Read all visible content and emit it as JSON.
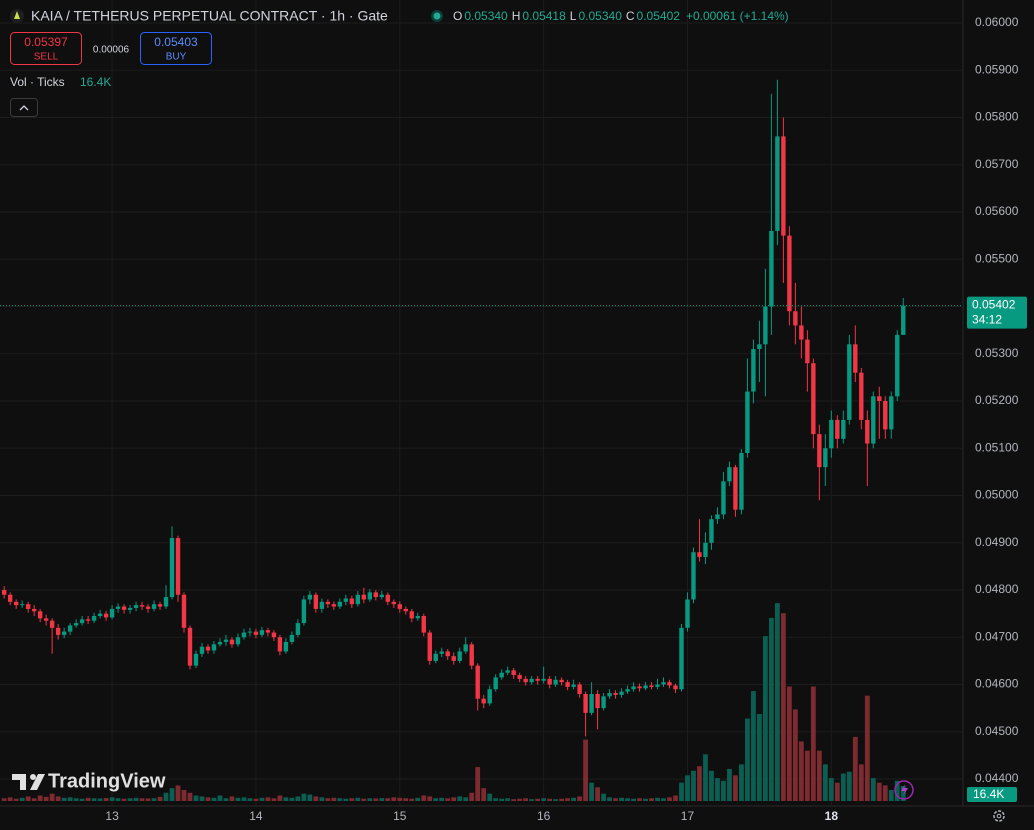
{
  "chart_data": {
    "type": "candlestick",
    "title": "KAIA / TETHERUS PERPETUAL CONTRACT · 1h · Gate",
    "legend": [
      {
        "key": "O",
        "value": "0.05340"
      },
      {
        "key": "H",
        "value": "0.05418"
      },
      {
        "key": "L",
        "value": "0.05340"
      },
      {
        "key": "C",
        "value": "0.05402"
      }
    ],
    "change": "+0.00061 (+1.14%)",
    "sell": {
      "price": "0.05397",
      "label": "SELL"
    },
    "spread": "0.00006",
    "buy": {
      "price": "0.05403",
      "label": "BUY"
    },
    "volume_title": "Vol · Ticks",
    "volume_label": "16.4K",
    "countdown": "34:12",
    "watermark": "TradingView",
    "up_color": "#089981",
    "down_color": "#f23645",
    "volume_up_color": "#0b5e52",
    "volume_down_color": "#7d2a30",
    "grid": true,
    "xlim": [
      -0.7,
      159.8
    ],
    "xticks": [
      {
        "value": 18,
        "label": "13"
      },
      {
        "value": 42,
        "label": "14"
      },
      {
        "value": 66,
        "label": "15"
      },
      {
        "value": 90,
        "label": "16"
      },
      {
        "value": 114,
        "label": "17"
      },
      {
        "value": 138,
        "label": "18"
      }
    ],
    "ylim": [
      0.043429,
      0.060487
    ],
    "yticks": [
      {
        "value": 0.06,
        "label": "0.06000"
      },
      {
        "value": 0.059,
        "label": "0.05900"
      },
      {
        "value": 0.058,
        "label": "0.05800"
      },
      {
        "value": 0.057,
        "label": "0.05700"
      },
      {
        "value": 0.056,
        "label": "0.05600"
      },
      {
        "value": 0.055,
        "label": "0.05500"
      },
      {
        "value": 0.054,
        "label": "0.05400"
      },
      {
        "value": 0.053,
        "label": "0.05300"
      },
      {
        "value": 0.052,
        "label": "0.05200"
      },
      {
        "value": 0.051,
        "label": "0.05100"
      },
      {
        "value": 0.05,
        "label": "0.05000"
      },
      {
        "value": 0.049,
        "label": "0.04900"
      },
      {
        "value": 0.048,
        "label": "0.04800"
      },
      {
        "value": 0.047,
        "label": "0.04700"
      },
      {
        "value": 0.046,
        "label": "0.04600"
      },
      {
        "value": 0.045,
        "label": "0.04500"
      },
      {
        "value": 0.044,
        "label": "0.04400"
      }
    ],
    "volume_lim": [
      0,
      250000
    ],
    "open": [
      0.048,
      0.0479,
      0.04775,
      0.04768,
      0.0477,
      0.0476,
      0.04755,
      0.0474,
      0.04735,
      0.0472,
      0.04705,
      0.04712,
      0.04725,
      0.0473,
      0.04738,
      0.04735,
      0.04745,
      0.0475,
      0.04742,
      0.0476,
      0.04765,
      0.04758,
      0.04762,
      0.04768,
      0.04765,
      0.0476,
      0.0477,
      0.04765,
      0.04785,
      0.0491,
      0.0479,
      0.0472,
      0.0464,
      0.04665,
      0.0468,
      0.04672,
      0.04685,
      0.0469,
      0.04695,
      0.04685,
      0.047,
      0.0471,
      0.04712,
      0.04705,
      0.04715,
      0.0471,
      0.047,
      0.0467,
      0.0469,
      0.04705,
      0.0473,
      0.0478,
      0.0479,
      0.0476,
      0.04775,
      0.0477,
      0.04765,
      0.04775,
      0.04782,
      0.0477,
      0.0479,
      0.0478,
      0.04795,
      0.04785,
      0.0479,
      0.04775,
      0.0477,
      0.0476,
      0.04755,
      0.0474,
      0.04745,
      0.0471,
      0.0465,
      0.04665,
      0.0467,
      0.0466,
      0.0465,
      0.0467,
      0.04685,
      0.0464,
      0.0457,
      0.0456,
      0.0459,
      0.04615,
      0.04625,
      0.0463,
      0.0462,
      0.04612,
      0.04605,
      0.04612,
      0.04608,
      0.04612,
      0.046,
      0.0461,
      0.04605,
      0.04595,
      0.046,
      0.0458,
      0.0454,
      0.0458,
      0.0455,
      0.04575,
      0.04582,
      0.04578,
      0.04585,
      0.0459,
      0.04596,
      0.04592,
      0.04598,
      0.04595,
      0.046,
      0.04605,
      0.04598,
      0.0459,
      0.0472,
      0.0478,
      0.0488,
      0.0487,
      0.049,
      0.0495,
      0.0496,
      0.0503,
      0.0506,
      0.0497,
      0.0509,
      0.0522,
      0.0531,
      0.0532,
      0.054,
      0.0556,
      0.0576,
      0.0555,
      0.0539,
      0.0536,
      0.0533,
      0.0528,
      0.0513,
      0.0506,
      0.051,
      0.0516,
      0.0512,
      0.0516,
      0.0532,
      0.0526,
      0.0516,
      0.0511,
      0.0521,
      0.052,
      0.0514,
      0.0521,
      0.0534
    ],
    "high": [
      0.04808,
      0.04795,
      0.0478,
      0.04778,
      0.04775,
      0.04768,
      0.0476,
      0.04748,
      0.0474,
      0.04728,
      0.0472,
      0.0473,
      0.04738,
      0.04745,
      0.04745,
      0.04752,
      0.04758,
      0.04756,
      0.04768,
      0.04772,
      0.0477,
      0.04768,
      0.04775,
      0.04775,
      0.0477,
      0.04778,
      0.04775,
      0.0481,
      0.04935,
      0.04915,
      0.04795,
      0.04725,
      0.04672,
      0.04688,
      0.04685,
      0.04692,
      0.04698,
      0.04705,
      0.047,
      0.04708,
      0.04718,
      0.0472,
      0.04718,
      0.04722,
      0.0472,
      0.04715,
      0.04705,
      0.04698,
      0.04712,
      0.04738,
      0.04788,
      0.04798,
      0.04795,
      0.04782,
      0.0478,
      0.04776,
      0.04782,
      0.0479,
      0.04788,
      0.04798,
      0.04805,
      0.04802,
      0.048,
      0.04798,
      0.04795,
      0.0478,
      0.04776,
      0.04765,
      0.0476,
      0.04752,
      0.0475,
      0.04715,
      0.04672,
      0.04678,
      0.04675,
      0.04668,
      0.04678,
      0.047,
      0.0469,
      0.04645,
      0.04578,
      0.04598,
      0.04622,
      0.04632,
      0.04638,
      0.04635,
      0.04625,
      0.04618,
      0.04618,
      0.04618,
      0.04638,
      0.04618,
      0.04618,
      0.04615,
      0.0461,
      0.0461,
      0.04605,
      0.04585,
      0.04605,
      0.04588,
      0.04582,
      0.0459,
      0.04588,
      0.04592,
      0.04598,
      0.04605,
      0.04602,
      0.04605,
      0.04605,
      0.04612,
      0.04615,
      0.0461,
      0.04602,
      0.04728,
      0.04795,
      0.0489,
      0.0495,
      0.04922,
      0.04958,
      0.04975,
      0.0505,
      0.05072,
      0.05065,
      0.05098,
      0.0529,
      0.0533,
      0.0537,
      0.0548,
      0.0585,
      0.0588,
      0.058,
      0.0557,
      0.0545,
      0.054,
      0.0535,
      0.0529,
      0.0515,
      0.0513,
      0.0518,
      0.0517,
      0.0518,
      0.0534,
      0.0536,
      0.0527,
      0.0518,
      0.0522,
      0.0523,
      0.0521,
      0.0522,
      0.0535,
      0.05418
    ],
    "low": [
      0.04782,
      0.04768,
      0.0476,
      0.04762,
      0.04752,
      0.04745,
      0.04732,
      0.04725,
      0.04665,
      0.04695,
      0.04698,
      0.04705,
      0.0472,
      0.04725,
      0.04728,
      0.0473,
      0.0474,
      0.04735,
      0.04738,
      0.04752,
      0.0475,
      0.0475,
      0.04755,
      0.04758,
      0.04752,
      0.04755,
      0.04758,
      0.0476,
      0.0478,
      0.04775,
      0.0471,
      0.04632,
      0.04635,
      0.04658,
      0.04665,
      0.04665,
      0.0468,
      0.04682,
      0.04678,
      0.0468,
      0.04695,
      0.04702,
      0.04698,
      0.047,
      0.04702,
      0.04692,
      0.04662,
      0.04665,
      0.04685,
      0.047,
      0.04725,
      0.0477,
      0.04752,
      0.04752,
      0.04762,
      0.04758,
      0.0476,
      0.04768,
      0.04762,
      0.04765,
      0.04772,
      0.04775,
      0.04778,
      0.0478,
      0.04768,
      0.04762,
      0.04752,
      0.04748,
      0.04732,
      0.04735,
      0.04702,
      0.04642,
      0.04645,
      0.04658,
      0.04652,
      0.04642,
      0.04645,
      0.04665,
      0.04632,
      0.04545,
      0.0455,
      0.04555,
      0.04585,
      0.0461,
      0.0462,
      0.04612,
      0.04605,
      0.04598,
      0.046,
      0.046,
      0.04602,
      0.04592,
      0.04595,
      0.04598,
      0.04588,
      0.0459,
      0.04572,
      0.0449,
      0.04535,
      0.04505,
      0.04545,
      0.0457,
      0.0457,
      0.04572,
      0.0458,
      0.04585,
      0.04585,
      0.04588,
      0.0459,
      0.0459,
      0.04595,
      0.04592,
      0.04582,
      0.04585,
      0.04712,
      0.04772,
      0.0486,
      0.04855,
      0.04885,
      0.0494,
      0.0495,
      0.0502,
      0.04955,
      0.0496,
      0.0508,
      0.05195,
      0.0524,
      0.0521,
      0.0534,
      0.0553,
      0.0545,
      0.0536,
      0.0532,
      0.0529,
      0.0522,
      0.051,
      0.0499,
      0.0502,
      0.0508,
      0.051,
      0.0511,
      0.0515,
      0.0524,
      0.0514,
      0.0502,
      0.051,
      0.0512,
      0.0512,
      0.0512,
      0.052,
      0.0534
    ],
    "close": [
      0.0479,
      0.04775,
      0.04768,
      0.0477,
      0.0476,
      0.04755,
      0.0474,
      0.04735,
      0.0472,
      0.04705,
      0.04712,
      0.04725,
      0.0473,
      0.04738,
      0.04735,
      0.04745,
      0.0475,
      0.04742,
      0.0476,
      0.04765,
      0.04758,
      0.04762,
      0.04768,
      0.04765,
      0.0476,
      0.0477,
      0.04765,
      0.04785,
      0.0491,
      0.0479,
      0.0472,
      0.0464,
      0.04665,
      0.0468,
      0.04672,
      0.04685,
      0.0469,
      0.04695,
      0.04685,
      0.047,
      0.0471,
      0.04712,
      0.04705,
      0.04715,
      0.0471,
      0.047,
      0.0467,
      0.0469,
      0.04705,
      0.0473,
      0.0478,
      0.0479,
      0.0476,
      0.04775,
      0.0477,
      0.04765,
      0.04775,
      0.04782,
      0.0477,
      0.0479,
      0.0478,
      0.04795,
      0.04785,
      0.0479,
      0.04775,
      0.0477,
      0.0476,
      0.04755,
      0.0474,
      0.04745,
      0.0471,
      0.0465,
      0.04665,
      0.0467,
      0.0466,
      0.0465,
      0.0467,
      0.04685,
      0.0464,
      0.0457,
      0.0456,
      0.0459,
      0.04615,
      0.04625,
      0.0463,
      0.0462,
      0.04612,
      0.04605,
      0.04612,
      0.04608,
      0.04612,
      0.046,
      0.0461,
      0.04605,
      0.04595,
      0.046,
      0.0458,
      0.0454,
      0.0458,
      0.0455,
      0.04575,
      0.04582,
      0.04578,
      0.04585,
      0.0459,
      0.04596,
      0.04592,
      0.04598,
      0.04595,
      0.046,
      0.04605,
      0.04598,
      0.0459,
      0.0472,
      0.0478,
      0.0488,
      0.0487,
      0.049,
      0.0495,
      0.0496,
      0.0503,
      0.0506,
      0.0497,
      0.0509,
      0.0522,
      0.0531,
      0.0532,
      0.054,
      0.0556,
      0.0576,
      0.0555,
      0.0539,
      0.0536,
      0.0533,
      0.0528,
      0.0513,
      0.0506,
      0.051,
      0.0516,
      0.0512,
      0.0516,
      0.0532,
      0.0526,
      0.0516,
      0.0511,
      0.0521,
      0.052,
      0.0514,
      0.0521,
      0.0534,
      0.05402
    ],
    "volume": [
      3000,
      4000,
      2500,
      3500,
      5000,
      3000,
      6000,
      4500,
      8000,
      5000,
      3500,
      4000,
      3000,
      2500,
      3500,
      3000,
      2800,
      3200,
      4000,
      3000,
      2500,
      3000,
      3500,
      3000,
      2800,
      3000,
      4500,
      9000,
      14000,
      17000,
      12000,
      9000,
      6000,
      5000,
      4000,
      3500,
      6000,
      3000,
      5000,
      3500,
      4000,
      3000,
      2500,
      3500,
      4000,
      3000,
      6000,
      4000,
      3500,
      5000,
      8000,
      7000,
      5000,
      4000,
      3000,
      3500,
      3000,
      2500,
      3000,
      3500,
      2500,
      3000,
      2800,
      3200,
      3000,
      4000,
      3500,
      3000,
      2500,
      3500,
      6000,
      5000,
      3000,
      3500,
      3000,
      4000,
      5000,
      4000,
      9000,
      37000,
      14000,
      8000,
      3000,
      2500,
      3000,
      2000,
      2500,
      3000,
      2000,
      2500,
      3000,
      2500,
      2000,
      2500,
      3000,
      3500,
      5000,
      67000,
      20000,
      15000,
      8000,
      4000,
      3000,
      3500,
      3000,
      2500,
      3000,
      2500,
      3000,
      3500,
      3000,
      4000,
      6000,
      20000,
      28000,
      33000,
      38000,
      51000,
      33000,
      25000,
      22000,
      35000,
      28000,
      40000,
      90000,
      120000,
      95000,
      180000,
      200000,
      216000,
      205000,
      125000,
      100000,
      65000,
      55000,
      125000,
      55000,
      40000,
      25000,
      20000,
      30000,
      32000,
      70000,
      40000,
      115000,
      25000,
      20000,
      17000,
      12000,
      22000,
      16400
    ]
  }
}
